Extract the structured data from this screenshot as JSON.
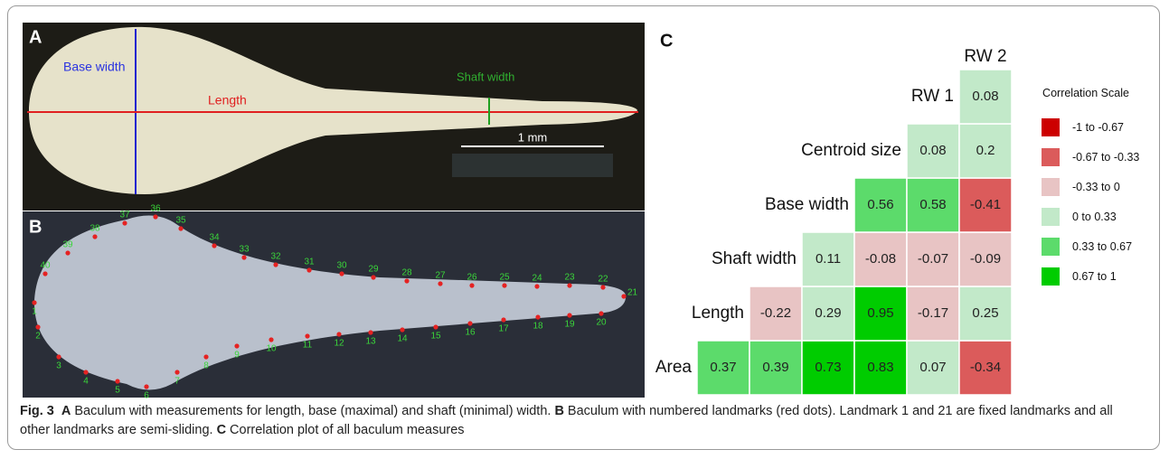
{
  "panels": {
    "a": {
      "label": "A",
      "base_width": "Base width",
      "length": "Length",
      "shaft_width": "Shaft width",
      "scale_bar": "1 mm"
    },
    "b": {
      "label": "B",
      "landmarks": [
        "1",
        "2",
        "3",
        "4",
        "5",
        "6",
        "7",
        "8",
        "9",
        "10",
        "11",
        "12",
        "13",
        "14",
        "15",
        "16",
        "17",
        "18",
        "19",
        "20",
        "21",
        "22",
        "23",
        "24",
        "25",
        "26",
        "27",
        "28",
        "29",
        "30",
        "31",
        "32",
        "33",
        "34",
        "35",
        "36",
        "37",
        "38",
        "39",
        "40"
      ]
    },
    "c": {
      "label": "C",
      "labels": [
        "Area",
        "Length",
        "Shaft width",
        "Base width",
        "Centroid size",
        "RW 1",
        "RW 2"
      ],
      "values": [
        [
          0.37,
          0.39,
          0.73,
          0.83,
          0.07,
          -0.34
        ],
        [
          -0.22,
          0.29,
          0.95,
          -0.17,
          0.25
        ],
        [
          0.11,
          -0.08,
          -0.07,
          -0.09
        ],
        [
          0.56,
          0.58,
          -0.41
        ],
        [
          0.08,
          0.2
        ],
        [
          0.08
        ]
      ],
      "legend": {
        "title": "Correlation Scale",
        "items": [
          {
            "label": "-1 to -0.67",
            "range": [
              -1,
              -0.67
            ],
            "color": "#cc0000"
          },
          {
            "label": "-0.67 to -0.33",
            "range": [
              -0.67,
              -0.33
            ],
            "color": "#db5b5b"
          },
          {
            "label": "-0.33 to 0",
            "range": [
              -0.33,
              0
            ],
            "color": "#e8c4c4"
          },
          {
            "label": "0 to 0.33",
            "range": [
              0,
              0.33
            ],
            "color": "#c2e9c9"
          },
          {
            "label": "0.33 to 0.67",
            "range": [
              0.33,
              0.67
            ],
            "color": "#5cdb6b"
          },
          {
            "label": "0.67 to 1",
            "range": [
              0.67,
              1
            ],
            "color": "#00cc00"
          }
        ]
      }
    }
  },
  "caption": {
    "label": "Fig. 3",
    "parts": [
      {
        "key": "A",
        "text": "Baculum with measurements for length, base (maximal) and shaft (minimal) width."
      },
      {
        "key": "B",
        "text": "Baculum with numbered landmarks (red dots). Landmark 1 and 21 are fixed landmarks and all other landmarks are semi-sliding."
      },
      {
        "key": "C",
        "text": "Correlation plot of all baculum measures"
      }
    ]
  }
}
